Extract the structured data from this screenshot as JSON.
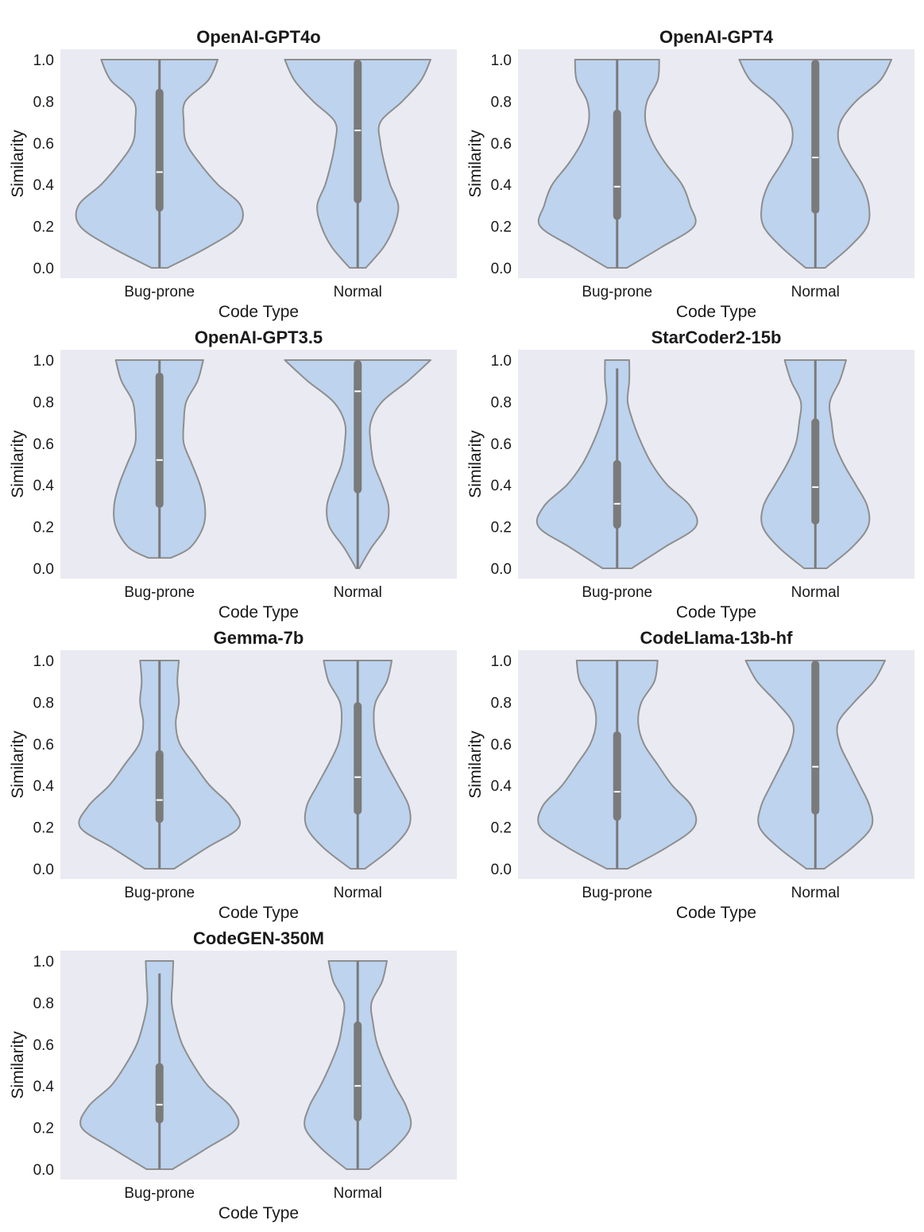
{
  "colors": {
    "plot_background": "#eaeaf2",
    "violin_fill": "#bdd3ee",
    "violin_edge": "#8e8e8e",
    "box_color": "#7a7a7a",
    "median_color": "#ffffff"
  },
  "chart_data": [
    {
      "type": "violin",
      "title": "OpenAI-GPT4o",
      "xlabel": "Code Type",
      "ylabel": "Similarity",
      "ylim": [
        0.0,
        1.0
      ],
      "yticks": [
        "0.0",
        "0.2",
        "0.4",
        "0.6",
        "0.8",
        "1.0"
      ],
      "categories": [
        "Bug-prone",
        "Normal"
      ],
      "series": [
        {
          "name": "Bug-prone",
          "whisker_low": 0.0,
          "whisker_high": 1.0,
          "q1": 0.27,
          "median": 0.46,
          "q3": 0.86,
          "density_y": [
            0.0,
            0.1,
            0.2,
            0.3,
            0.4,
            0.5,
            0.6,
            0.7,
            0.8,
            0.9,
            1.0
          ],
          "density": [
            0.1,
            0.6,
            0.98,
            1.0,
            0.72,
            0.5,
            0.33,
            0.3,
            0.32,
            0.6,
            0.72
          ]
        },
        {
          "name": "Normal",
          "whisker_low": 0.0,
          "whisker_high": 1.0,
          "q1": 0.31,
          "median": 0.66,
          "q3": 1.0,
          "density_y": [
            0.0,
            0.1,
            0.2,
            0.3,
            0.4,
            0.5,
            0.6,
            0.7,
            0.8,
            0.9,
            1.0
          ],
          "density": [
            0.1,
            0.32,
            0.45,
            0.5,
            0.4,
            0.33,
            0.28,
            0.28,
            0.55,
            0.78,
            0.9
          ]
        }
      ]
    },
    {
      "type": "violin",
      "title": "OpenAI-GPT4",
      "xlabel": "Code Type",
      "ylabel": "Similarity",
      "ylim": [
        0.0,
        1.0
      ],
      "yticks": [
        "0.0",
        "0.2",
        "0.4",
        "0.6",
        "0.8",
        "1.0"
      ],
      "categories": [
        "Bug-prone",
        "Normal"
      ],
      "series": [
        {
          "name": "Bug-prone",
          "whisker_low": 0.0,
          "whisker_high": 1.0,
          "q1": 0.23,
          "median": 0.39,
          "q3": 0.76,
          "density_y": [
            0.0,
            0.1,
            0.2,
            0.3,
            0.4,
            0.5,
            0.6,
            0.7,
            0.8,
            0.9,
            1.0
          ],
          "density": [
            0.12,
            0.55,
            0.95,
            0.9,
            0.8,
            0.6,
            0.44,
            0.35,
            0.37,
            0.5,
            0.52
          ]
        },
        {
          "name": "Normal",
          "whisker_low": 0.0,
          "whisker_high": 1.0,
          "q1": 0.26,
          "median": 0.53,
          "q3": 1.0,
          "density_y": [
            0.0,
            0.1,
            0.2,
            0.3,
            0.4,
            0.5,
            0.6,
            0.7,
            0.8,
            0.9,
            1.0
          ],
          "density": [
            0.12,
            0.42,
            0.64,
            0.66,
            0.58,
            0.42,
            0.29,
            0.31,
            0.5,
            0.8,
            0.94
          ]
        }
      ]
    },
    {
      "type": "violin",
      "title": "OpenAI-GPT3.5",
      "xlabel": "Code Type",
      "ylabel": "Similarity",
      "ylim": [
        0.0,
        1.0
      ],
      "yticks": [
        "0.0",
        "0.2",
        "0.4",
        "0.6",
        "0.8",
        "1.0"
      ],
      "categories": [
        "Bug-prone",
        "Normal"
      ],
      "series": [
        {
          "name": "Bug-prone",
          "whisker_low": 0.05,
          "whisker_high": 1.0,
          "q1": 0.29,
          "median": 0.52,
          "q3": 0.94,
          "density_y": [
            0.05,
            0.1,
            0.2,
            0.3,
            0.4,
            0.5,
            0.6,
            0.7,
            0.8,
            0.9,
            1.0
          ],
          "density": [
            0.14,
            0.38,
            0.54,
            0.56,
            0.5,
            0.4,
            0.3,
            0.3,
            0.33,
            0.47,
            0.54
          ]
        },
        {
          "name": "Normal",
          "whisker_low": 0.0,
          "whisker_high": 1.0,
          "q1": 0.36,
          "median": 0.85,
          "q3": 1.0,
          "density_y": [
            0.0,
            0.1,
            0.2,
            0.3,
            0.4,
            0.5,
            0.6,
            0.7,
            0.8,
            0.9,
            1.0
          ],
          "density": [
            0.02,
            0.17,
            0.35,
            0.38,
            0.3,
            0.2,
            0.16,
            0.16,
            0.3,
            0.62,
            0.9
          ]
        }
      ]
    },
    {
      "type": "violin",
      "title": "StarCoder2-15b",
      "xlabel": "Code Type",
      "ylabel": "Similarity",
      "ylim": [
        0.0,
        1.0
      ],
      "yticks": [
        "0.0",
        "0.2",
        "0.4",
        "0.6",
        "0.8",
        "1.0"
      ],
      "categories": [
        "Bug-prone",
        "Normal"
      ],
      "series": [
        {
          "name": "Bug-prone",
          "whisker_low": 0.0,
          "whisker_high": 0.96,
          "q1": 0.19,
          "median": 0.31,
          "q3": 0.52,
          "density_y": [
            0.0,
            0.1,
            0.2,
            0.3,
            0.4,
            0.5,
            0.6,
            0.7,
            0.8,
            0.9,
            1.0
          ],
          "density": [
            0.18,
            0.58,
            0.97,
            0.9,
            0.62,
            0.43,
            0.3,
            0.2,
            0.13,
            0.15,
            0.15
          ]
        },
        {
          "name": "Normal",
          "whisker_low": 0.0,
          "whisker_high": 1.0,
          "q1": 0.21,
          "median": 0.39,
          "q3": 0.72,
          "density_y": [
            0.0,
            0.1,
            0.2,
            0.3,
            0.4,
            0.5,
            0.6,
            0.7,
            0.8,
            0.9,
            1.0
          ],
          "density": [
            0.14,
            0.45,
            0.65,
            0.64,
            0.5,
            0.35,
            0.24,
            0.2,
            0.18,
            0.3,
            0.38
          ]
        }
      ]
    },
    {
      "type": "violin",
      "title": "Gemma-7b",
      "xlabel": "Code Type",
      "ylabel": "Similarity",
      "ylim": [
        0.0,
        1.0
      ],
      "yticks": [
        "0.0",
        "0.2",
        "0.4",
        "0.6",
        "0.8",
        "1.0"
      ],
      "categories": [
        "Bug-prone",
        "Normal"
      ],
      "series": [
        {
          "name": "Bug-prone",
          "whisker_low": 0.0,
          "whisker_high": 1.0,
          "q1": 0.22,
          "median": 0.33,
          "q3": 0.57,
          "density_y": [
            0.0,
            0.1,
            0.2,
            0.3,
            0.4,
            0.5,
            0.6,
            0.7,
            0.8,
            0.9,
            1.0
          ],
          "density": [
            0.18,
            0.58,
            0.98,
            0.88,
            0.62,
            0.43,
            0.25,
            0.2,
            0.24,
            0.22,
            0.24
          ]
        },
        {
          "name": "Normal",
          "whisker_low": 0.0,
          "whisker_high": 1.0,
          "q1": 0.26,
          "median": 0.44,
          "q3": 0.8,
          "density_y": [
            0.0,
            0.1,
            0.2,
            0.3,
            0.4,
            0.5,
            0.6,
            0.7,
            0.8,
            0.9,
            1.0
          ],
          "density": [
            0.09,
            0.42,
            0.63,
            0.63,
            0.5,
            0.36,
            0.24,
            0.2,
            0.22,
            0.36,
            0.42
          ]
        }
      ]
    },
    {
      "type": "violin",
      "title": "CodeLlama-13b-hf",
      "xlabel": "Code Type",
      "ylabel": "Similarity",
      "ylim": [
        0.0,
        1.0
      ],
      "yticks": [
        "0.0",
        "0.2",
        "0.4",
        "0.6",
        "0.8",
        "1.0"
      ],
      "categories": [
        "Bug-prone",
        "Normal"
      ],
      "series": [
        {
          "name": "Bug-prone",
          "whisker_low": 0.0,
          "whisker_high": 1.0,
          "q1": 0.23,
          "median": 0.37,
          "q3": 0.66,
          "density_y": [
            0.0,
            0.1,
            0.2,
            0.3,
            0.4,
            0.5,
            0.6,
            0.7,
            0.8,
            0.9,
            1.0
          ],
          "density": [
            0.13,
            0.6,
            0.95,
            0.92,
            0.68,
            0.5,
            0.33,
            0.26,
            0.3,
            0.46,
            0.5
          ]
        },
        {
          "name": "Normal",
          "whisker_low": 0.0,
          "whisker_high": 1.0,
          "q1": 0.26,
          "median": 0.49,
          "q3": 1.0,
          "density_y": [
            0.0,
            0.1,
            0.2,
            0.3,
            0.4,
            0.5,
            0.6,
            0.7,
            0.8,
            0.9,
            1.0
          ],
          "density": [
            0.11,
            0.45,
            0.69,
            0.67,
            0.55,
            0.42,
            0.3,
            0.28,
            0.48,
            0.72,
            0.86
          ]
        }
      ]
    },
    {
      "type": "violin",
      "title": "CodeGEN-350M",
      "xlabel": "Code Type",
      "ylabel": "Similarity",
      "ylim": [
        0.0,
        1.0
      ],
      "yticks": [
        "0.0",
        "0.2",
        "0.4",
        "0.6",
        "0.8",
        "1.0"
      ],
      "categories": [
        "Bug-prone",
        "Normal"
      ],
      "series": [
        {
          "name": "Bug-prone",
          "whisker_low": 0.0,
          "whisker_high": 0.94,
          "q1": 0.22,
          "median": 0.31,
          "q3": 0.51,
          "density_y": [
            0.0,
            0.1,
            0.2,
            0.3,
            0.4,
            0.5,
            0.6,
            0.7,
            0.8,
            0.9,
            1.0
          ],
          "density": [
            0.16,
            0.58,
            0.96,
            0.88,
            0.6,
            0.42,
            0.28,
            0.2,
            0.15,
            0.16,
            0.17
          ]
        },
        {
          "name": "Normal",
          "whisker_low": 0.0,
          "whisker_high": 1.0,
          "q1": 0.23,
          "median": 0.4,
          "q3": 0.71,
          "density_y": [
            0.0,
            0.1,
            0.2,
            0.3,
            0.4,
            0.5,
            0.6,
            0.7,
            0.8,
            0.9,
            1.0
          ],
          "density": [
            0.14,
            0.45,
            0.65,
            0.6,
            0.46,
            0.34,
            0.24,
            0.19,
            0.17,
            0.3,
            0.36
          ]
        }
      ]
    }
  ]
}
